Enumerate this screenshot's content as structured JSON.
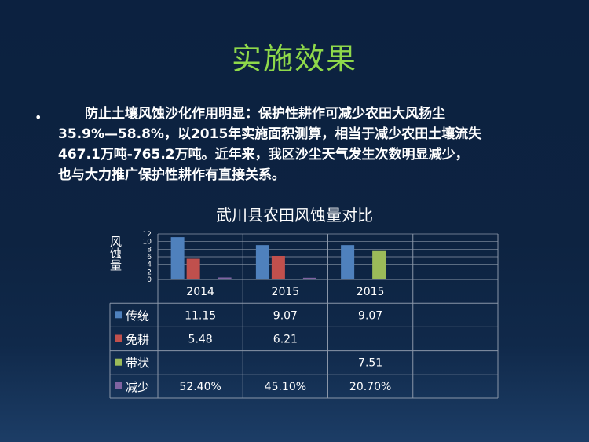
{
  "slide": {
    "title": "实施效果",
    "bullet": "•",
    "paragraph_lines": [
      "防止土壤风蚀沙化作用明显：保护性耕作可减少农田大风扬尘",
      "35.9%—58.8%，以2015年实施面积测算，相当于减少农田土壤流失",
      "467.1万吨-765.2万吨。近年来，我区沙尘天气发生次数明显减少，",
      "也与大力推广保护性耕作有直接关系。"
    ]
  },
  "chart_data": {
    "type": "bar",
    "title": "武川县农田风蚀量对比",
    "xlabel": "",
    "ylabel": "风蚀量",
    "ylim": [
      0,
      12
    ],
    "yticks": [
      0,
      2,
      4,
      6,
      8,
      10,
      12
    ],
    "grid": true,
    "categories": [
      "2014",
      "2015",
      "2015"
    ],
    "series": [
      {
        "name": "传统",
        "color": "#4f81bd",
        "values": [
          11.15,
          9.07,
          9.07
        ],
        "labels": [
          "11.15",
          "9.07",
          "9.07"
        ]
      },
      {
        "name": "免耕",
        "color": "#c0504d",
        "values": [
          5.48,
          6.21,
          null
        ],
        "labels": [
          "5.48",
          "6.21",
          ""
        ]
      },
      {
        "name": "带状",
        "color": "#9bbb59",
        "values": [
          null,
          null,
          7.51
        ],
        "labels": [
          "",
          "",
          "7.51"
        ]
      },
      {
        "name": "减少",
        "color": "#8064a2",
        "values": [
          0.524,
          0.451,
          0.207
        ],
        "labels": [
          "52.40%",
          "45.10%",
          "20.70%"
        ]
      }
    ]
  }
}
